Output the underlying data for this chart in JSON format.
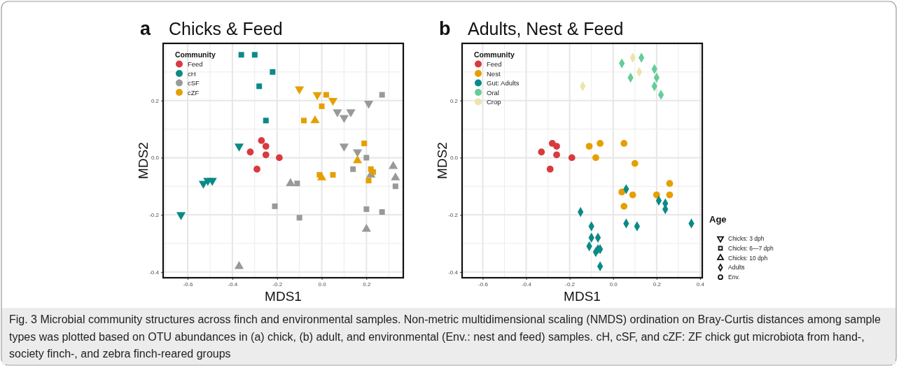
{
  "chart_data": [
    {
      "type": "scatter",
      "title": "Chicks & Feed",
      "annotations": [
        "a"
      ],
      "xlabel": "MDS1",
      "ylabel": "MDS2",
      "xlim": [
        -0.71,
        0.365
      ],
      "ylim": [
        -0.42,
        0.4
      ],
      "xticks": [
        {
          "value": -0.6,
          "label": "-0.6"
        },
        {
          "value": -0.4,
          "label": "-0.4"
        },
        {
          "value": -0.2,
          "label": "-0.2"
        },
        {
          "value": 0,
          "label": "0.0"
        },
        {
          "value": 0.2,
          "label": "0.2"
        }
      ],
      "yticks": [
        {
          "value": -0.4,
          "label": "-0.4"
        },
        {
          "value": -0.2,
          "label": "-0.2"
        },
        {
          "value": 0,
          "label": "0.0"
        },
        {
          "value": 0.2,
          "label": "0.2"
        }
      ],
      "grid": true,
      "legend": "top left",
      "legend_title": "Community",
      "series": [
        {
          "name": "Feed",
          "color": "#d83a3f",
          "marker": [
            "circle",
            "circle",
            "circle",
            "circle",
            "circle",
            "circle"
          ],
          "x": [
            -0.27,
            -0.25,
            -0.32,
            -0.25,
            -0.19,
            -0.29
          ],
          "values": [
            0.06,
            0.04,
            0.02,
            0.01,
            0.0,
            -0.04
          ]
        },
        {
          "name": "cH",
          "color": "#0b8a87",
          "marker": [
            "square",
            "square",
            "square",
            "square",
            "square",
            "triangle-down",
            "triangle-down",
            "triangle-down",
            "triangle-down",
            "triangle-down"
          ],
          "x": [
            -0.36,
            -0.3,
            -0.22,
            -0.28,
            -0.25,
            -0.37,
            -0.53,
            -0.51,
            -0.49,
            -0.63
          ],
          "values": [
            0.36,
            0.36,
            0.3,
            0.25,
            0.13,
            0.04,
            -0.09,
            -0.08,
            -0.08,
            -0.2
          ]
        },
        {
          "name": "cSF",
          "color": "#999999",
          "marker": [
            "triangle-down",
            "triangle-down",
            "triangle-down",
            "triangle-down",
            "triangle-down",
            "triangle-down",
            "square",
            "square",
            "square",
            "square",
            "square",
            "square",
            "square",
            "square",
            "square",
            "triangle",
            "triangle",
            "triangle",
            "triangle",
            "triangle",
            "triangle"
          ],
          "x": [
            0.07,
            0.1,
            0.13,
            0.21,
            0.1,
            0.16,
            0.27,
            0.2,
            0.14,
            -0.11,
            -0.21,
            -0.1,
            0.2,
            0.27,
            0.33,
            -0.14,
            -0.37,
            0.2,
            0.22,
            0.32,
            0.33
          ],
          "values": [
            0.16,
            0.14,
            0.16,
            0.19,
            0.04,
            0.02,
            0.22,
            0.0,
            -0.04,
            -0.09,
            -0.17,
            -0.21,
            -0.18,
            -0.19,
            -0.1,
            -0.09,
            -0.38,
            -0.25,
            -0.06,
            -0.03,
            -0.07
          ]
        },
        {
          "name": "cZF",
          "color": "#e69f00",
          "marker": [
            "triangle-down",
            "triangle-down",
            "triangle-down",
            "square",
            "square",
            "square",
            "square",
            "square",
            "square",
            "square",
            "square",
            "square",
            "triangle",
            "triangle",
            "triangle"
          ],
          "x": [
            -0.1,
            -0.02,
            0.05,
            0.02,
            0.0,
            -0.08,
            0.19,
            -0.01,
            0.05,
            0.22,
            0.23,
            0.21,
            -0.03,
            0.16,
            0.0
          ],
          "values": [
            0.24,
            0.22,
            0.2,
            0.22,
            0.18,
            0.13,
            0.05,
            -0.06,
            -0.06,
            -0.04,
            -0.05,
            -0.08,
            0.13,
            -0.01,
            -0.07
          ]
        }
      ]
    },
    {
      "type": "scatter",
      "title": "Adults, Nest & Feed",
      "annotations": [
        "b"
      ],
      "xlabel": "MDS1",
      "ylabel": "MDS2",
      "xlim": [
        -0.695,
        0.41
      ],
      "ylim": [
        -0.42,
        0.4
      ],
      "xticks": [
        {
          "value": -0.6,
          "label": "-0.6"
        },
        {
          "value": -0.4,
          "label": "-0.4"
        },
        {
          "value": -0.2,
          "label": "-0.2"
        },
        {
          "value": 0,
          "label": "0.0"
        },
        {
          "value": 0.2,
          "label": "0.2"
        },
        {
          "value": 0.4,
          "label": "0.4"
        }
      ],
      "yticks": [
        {
          "value": -0.4,
          "label": "-0.4"
        },
        {
          "value": -0.2,
          "label": "-0.2"
        },
        {
          "value": 0,
          "label": "0.0"
        },
        {
          "value": 0.2,
          "label": "0.2"
        }
      ],
      "grid": true,
      "legend": "top left",
      "legend_title": "Community",
      "series": [
        {
          "name": "Feed",
          "color": "#d83a3f",
          "marker": "circle",
          "x": [
            -0.28,
            -0.26,
            -0.33,
            -0.26,
            -0.19,
            -0.29
          ],
          "values": [
            0.05,
            0.04,
            0.02,
            0.01,
            0.0,
            -0.04
          ]
        },
        {
          "name": "Nest",
          "color": "#e69f00",
          "marker": "circle",
          "x": [
            -0.11,
            -0.06,
            0.05,
            -0.08,
            0.1,
            0.26,
            0.04,
            0.09,
            0.2,
            0.26,
            0.05
          ],
          "values": [
            0.04,
            0.05,
            0.05,
            0.0,
            -0.02,
            -0.09,
            -0.12,
            -0.13,
            -0.13,
            -0.13,
            -0.17
          ]
        },
        {
          "name": "Gut: Adults",
          "color": "#0b8a87",
          "marker": "diamond",
          "x": [
            0.06,
            0.21,
            0.24,
            0.24,
            -0.15,
            0.06,
            0.11,
            0.36,
            -0.1,
            -0.1,
            -0.07,
            -0.11,
            -0.08,
            -0.07,
            -0.06,
            -0.06
          ],
          "values": [
            -0.11,
            -0.15,
            -0.16,
            -0.18,
            -0.19,
            -0.23,
            -0.24,
            -0.23,
            -0.24,
            -0.28,
            -0.28,
            -0.31,
            -0.33,
            -0.32,
            -0.32,
            -0.38
          ]
        },
        {
          "name": "Oral",
          "color": "#66cc99",
          "marker": "diamond",
          "x": [
            0.04,
            0.13,
            0.08,
            0.19,
            0.2,
            0.19,
            0.22
          ],
          "values": [
            0.33,
            0.35,
            0.28,
            0.31,
            0.28,
            0.25,
            0.22
          ]
        },
        {
          "name": "Crop",
          "color": "#ede4ad",
          "marker": "diamond",
          "x": [
            0.09,
            0.12,
            -0.14
          ],
          "values": [
            0.35,
            0.3,
            0.25
          ]
        }
      ]
    },
    {
      "type": "other",
      "legend_title": "Age",
      "categories": [
        "Chicks: 3 dph",
        "Chicks: 6—7 dph",
        "Chicks: 10 dph",
        "Adults",
        "Env."
      ],
      "annotations": [
        "Fig. 3 Microbial community structures across finch and environmental samples. Non-metric multidimensional scaling (NMDS) ordination on Bray-Curtis distances among sample types was plotted based on OTU abundances in (a) chick, (b) adult, and environmental (Env.: nest and feed) samples. cH, cSF, and cZF: ZF chick gut microbiota from hand-, society finch-, and zebra finch-reared groups"
      ]
    }
  ]
}
